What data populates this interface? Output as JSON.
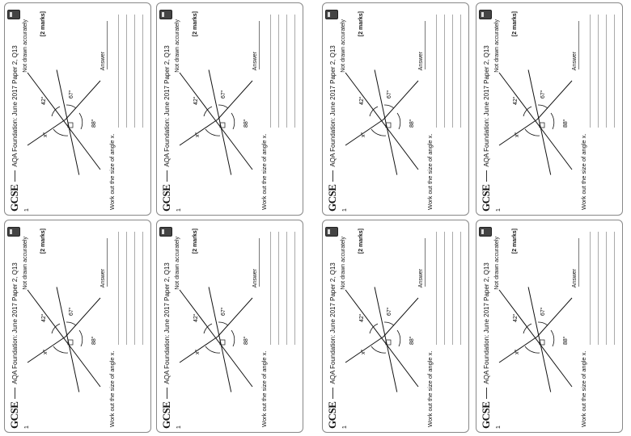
{
  "sheet": {
    "brand": "GCSE",
    "title": "AQA Foundation: June 2017 Paper 2, Q13",
    "question_number": "1",
    "not_drawn": "Not drawn accurately",
    "marks": "[2 marks]",
    "prompt": "Work out the size of angle x.",
    "answer_label": "Answer",
    "angles": {
      "x": "x°",
      "a": "42°",
      "b": "67°",
      "c": "88°"
    }
  },
  "cards": [
    {
      "id": "card-1"
    },
    {
      "id": "card-2"
    },
    {
      "id": "card-3"
    },
    {
      "id": "card-4"
    },
    {
      "id": "card-5"
    },
    {
      "id": "card-6"
    },
    {
      "id": "card-7"
    },
    {
      "id": "card-8"
    }
  ]
}
